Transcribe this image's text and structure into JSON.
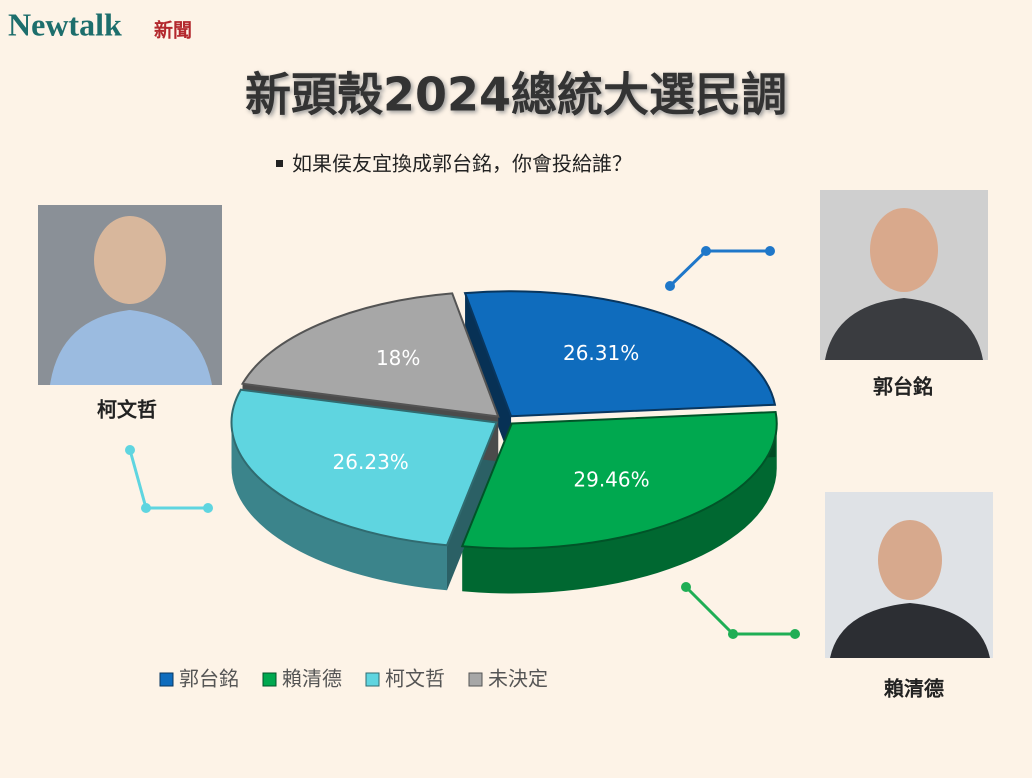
{
  "logo": {
    "name": "Newtalk",
    "suffix": "新聞"
  },
  "photos": [
    {
      "caption": "柯文哲"
    },
    {
      "caption": "郭台銘"
    },
    {
      "caption": "賴清德"
    }
  ],
  "chart_data": {
    "type": "pie",
    "title": "新頭殼2024總統大選民調",
    "subtitle": "如果侯友宜換成郭台銘，你會投給誰？",
    "categories": [
      "郭台銘",
      "賴清德",
      "柯文哲",
      "未決定"
    ],
    "values": [
      26.31,
      29.46,
      26.23,
      18
    ],
    "value_labels": [
      "26.31%",
      "29.46%",
      "26.23%",
      "18%"
    ],
    "colors": [
      "#0f6cbd",
      "#00a84f",
      "#5fd5e0",
      "#a7a7a7"
    ],
    "legend": "bottom"
  }
}
